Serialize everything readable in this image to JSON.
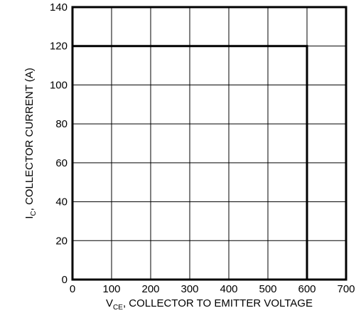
{
  "chart_data": {
    "type": "line",
    "title": "",
    "xlabel": {
      "prefix": "V",
      "subscript": "CE",
      "suffix": ", COLLECTOR TO EMITTER VOLTAGE"
    },
    "ylabel": {
      "prefix": "I",
      "subscript": "C",
      "suffix": ", COLLECTOR  CURRENT (A)"
    },
    "xlim": [
      0,
      700
    ],
    "ylim": [
      0,
      140
    ],
    "xticks": [
      0,
      100,
      200,
      300,
      400,
      500,
      600,
      700
    ],
    "yticks": [
      0,
      20,
      40,
      60,
      80,
      100,
      120,
      140
    ],
    "grid": true,
    "legend": "none",
    "series": [
      {
        "color": "#000000",
        "x": [
          0,
          0,
          600,
          600
        ],
        "y": [
          0,
          120,
          120,
          0
        ]
      }
    ]
  }
}
